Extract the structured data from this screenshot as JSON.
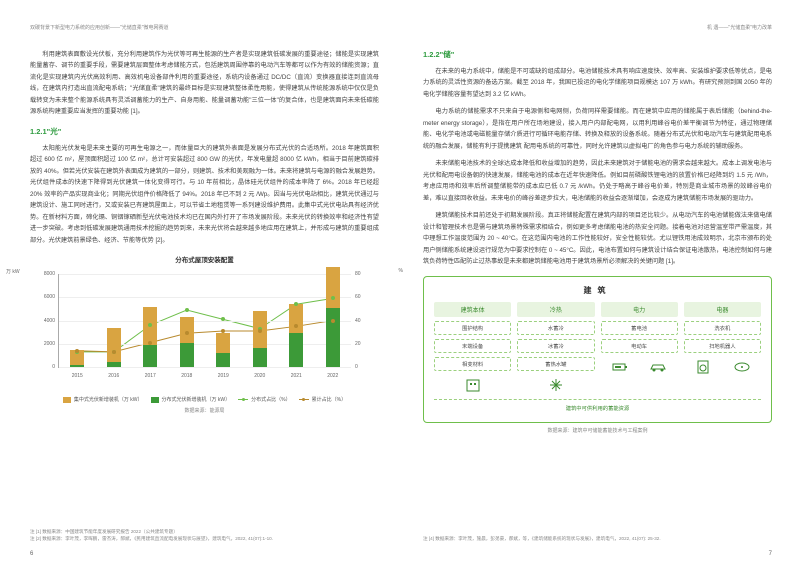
{
  "header": {
    "left_running": "双碳背景下新型电力系统的应用创新——\"光储直柔\"微电网赛道",
    "right_running": "机  遇——\"光储直柔\"电力改革"
  },
  "left": {
    "intro_para": "利用建筑表面敷设光伏板，充分利用建筑作为光伏等可再生能源的生产者是实现建筑低碳发展的重要途径；储能是实现建筑能量蓄存、调节的重要手段，需要建筑层面整体考虑储能方式，包括建筑周围停靠的电动汽车等都可以作为有效的储能资源；直流化是实现建筑内光伏高效利用、高效机电设备部件利用的重要途径，系统内设备通过 DC/DC（直流）变换器直接连到直流母线，在建筑内打造出直流配电系统；\"光储直柔\"建筑的最终目标是实现建筑整体柔性用能，使得建筑从传统能源系统中仅仅是负载转变为未来整个能源系统具有灵活调蓄能力的生产、自身用能、能量调蓄功能\"三位一体\"的复合体，也是建筑面向未来低碳能源系统构建重要应当发挥的重要功能 [1]。",
    "h_light": "1.2.1\"光\"",
    "light_p1": "太阳能光伏发电是未来主要的可再生电源之一，而体量巨大的建筑外表面是发展分布式光伏的合适场所。2018 年建筑面积超过 600 亿 m²，屋顶面积超过 100 亿 m²，总计可安装超过 800 GW 的光伏，年发电量超 8000 亿 kWh，相当于目前建筑碳排放的 40%。但若光伏安装在建筑外表面成为建筑的一部分，则建筑、技术和美观融为一体。未来将建筑与电源的融合发展趋势。光伏组件成本的快速下降得到光伏建筑一体化变得可行。与 10 年前相比，晶体硅光伏组件的成本率降了 6%。2018 年已经超 20% 效率的产品实现商业化；同期光伏组件价格降低了 94%。2018 年已不到 2 元 /Wp。因当与光伏电站相比，建筑光伏通过与建筑设计、施工同时进行，又或安装已有建筑屋面上，可以节省土地租赁等一系列建设维护费用。此集中式光伏电站具有经济优势。在新材料方面，碲化镉、铜铟镓硒新型光伏电池技术均已在国内外打开了市场发展阶段。未来光伏的转换效率和经济性有望进一步突破。考虑到低碳发展建筑通用技术挖掘的趋势到来，未来光伏将会越来越多地应用在建筑上，并形成与建筑的重要组成部分。光伏建筑前景绿色、经济、节能等优势 [2]。",
    "chart": {
      "title": "分布式屋顶安装配置",
      "type": "stacked-bar-dual-axis-line",
      "years": [
        "2015",
        "2016",
        "2017",
        "2018",
        "2019",
        "2020",
        "2021",
        "2022"
      ],
      "y_left_label": "万 kW",
      "y_right_label": "%",
      "y_left_max": 8000,
      "y_left_step": 2000,
      "y_right_max": 80,
      "y_right_step": 20,
      "series_bars": [
        {
          "name": "集中式光伏新增装机（万 kW）",
          "color": "#d9a441",
          "values": [
            1300,
            2900,
            3300,
            2200,
            1700,
            3200,
            2500,
            3500
          ]
        },
        {
          "name": "分布式光伏新增装机（万 kW）",
          "color": "#3c9a38",
          "values": [
            200,
            450,
            1900,
            2100,
            1200,
            1600,
            2900,
            5100
          ]
        }
      ],
      "series_lines": [
        {
          "name": "分布式占比（%）",
          "color": "#6fbf4b",
          "values": [
            13,
            13,
            36,
            49,
            41,
            33,
            54,
            59
          ]
        },
        {
          "name": "累计占比（%）",
          "color": "#b88a2e",
          "values": [
            14,
            13,
            21,
            29,
            31,
            31,
            35,
            40
          ]
        }
      ],
      "background": "#ffffff",
      "grid_color": "#eeeeee",
      "source": "数据来源：能源局"
    },
    "footnotes": [
      "注 [1] 数据来源：中国建筑节能年度发展研究报告 2022（公共建筑专题）",
      "注 [2] 数据来源：李叶茂，李晖鹏，雷杰涛，郝斌，《民用建筑直流配电发展现状与展望》，建筑电气，2022, 41(07):1-10."
    ],
    "pagenum": "6"
  },
  "right": {
    "h_store": "1.2.2\"储\"",
    "store_p1": "在未来的电力系统中，储能是不可或缺的组成部分。电池储能技术具有响应速度快、效率高、安装维护要求低等优点，是电力系统的灵活性资源的备选方案。截至 2018 年，我国已投运的电化学储能项目规模达 107 万 kWh。有研究预测到国 2050 年的电化学储能容量有望达到 3.2 亿 kWh。",
    "store_p2": "电力系统的储能需求不只来自于电源侧和电网侧，负荷同样需要储能。而在建筑中应用的储能属于表后储能（behind-the-meter energy storage），是指在用户所在场地建设，接入用户内部配电网，以用利用峰谷电价差平衡调节为特征，通过物理储能、电化学电池或电磁能量存储介质进行可循环电能存储、转换及释放的设备系统。随着分布式光伏和电动汽车与建筑配用电系统的融合发展，储能有利于提携建筑  配用电系统的可靠性，同时允许建筑以虚拟电厂的角色参与电力系统的辅助服务。",
    "store_p3": "未来储能电池技术的全球达成本降低和收益增加的趋势，因此未来建筑对于储能电池的需求会越来越大。成本上调发电池与光伏和配用电设备朝的快速发展，储能电池的成本在近年快速降低。例如目前磷酸铁锂电池的放置价格已经降到约 1.5 元 /Wh，考虑应用场和效率后所调整储能带的成本应已低 0.7 元 /kWh。仍处于略高于峰谷电价差，特别是商业城市场景的效峰谷电价差，难以直接回收收益。未来电价的峰谷差逐步拉大，电池储能的收益会逐渐增加，会逐成为建筑储能市场发展的驱动力。",
    "store_p4": "建筑储能技术目前还处于初期发展阶段。真正将储能配置在建筑内部的项目还比较少。从电动汽车的电池储能做法来做电储设计和管理技术也是需与建筑场景特殊需求相结合，例如更多考虑储能电池的热安全问题。接着电池对运营温室带严需温度，其中理想工作温度范围为 20 ~ 40°C。在这范围内电池的工作性能较好，安全性能较优。尤以锂铁用池成效明示，北京市颁布的处用户侧储能系统建设运行规范为中要求控制在 0 ~ 45°C。因此，电池布置如何与建筑设计结合保证电池散热，电池控制如何与建筑负荷特性匹配防止过热事故是未来都建筑储能电池用于建筑场景所必须解决的关键问题 [1]。",
    "infographic": {
      "title": "建筑",
      "columns": [
        {
          "head": "建筑本体",
          "items": [
            "围护结构",
            "末端设备",
            "相变材料"
          ],
          "icons": [
            "building"
          ]
        },
        {
          "head": "冷热",
          "items": [
            "水蓄冷",
            "冰蓄冷",
            "蓄热水罐"
          ],
          "icons": [
            "snow"
          ]
        },
        {
          "head": "电力",
          "items": [
            "蓄电池",
            "电动车"
          ],
          "icons": [
            "battery",
            "car"
          ]
        },
        {
          "head": "电器",
          "items": [
            "洗衣机",
            "扫地机器人"
          ],
          "icons": [
            "washer",
            "robot"
          ]
        }
      ],
      "footer": "建筑中可供利用的蓄能资源",
      "source": "数据来源：建筑中可储能蓄能技术与工程案例",
      "border_color": "#6fbf4b",
      "head_bg": "#e8f4e0",
      "head_text": "#3a8a2e"
    },
    "footnotes": [
      "注 [4] 数据来源：李叶茂，施晨，彭弟豪，郝斌，等，《建筑储能系统的现状与发展》，建筑电气，2022, 41(07): 25-32."
    ],
    "pagenum": "7"
  }
}
